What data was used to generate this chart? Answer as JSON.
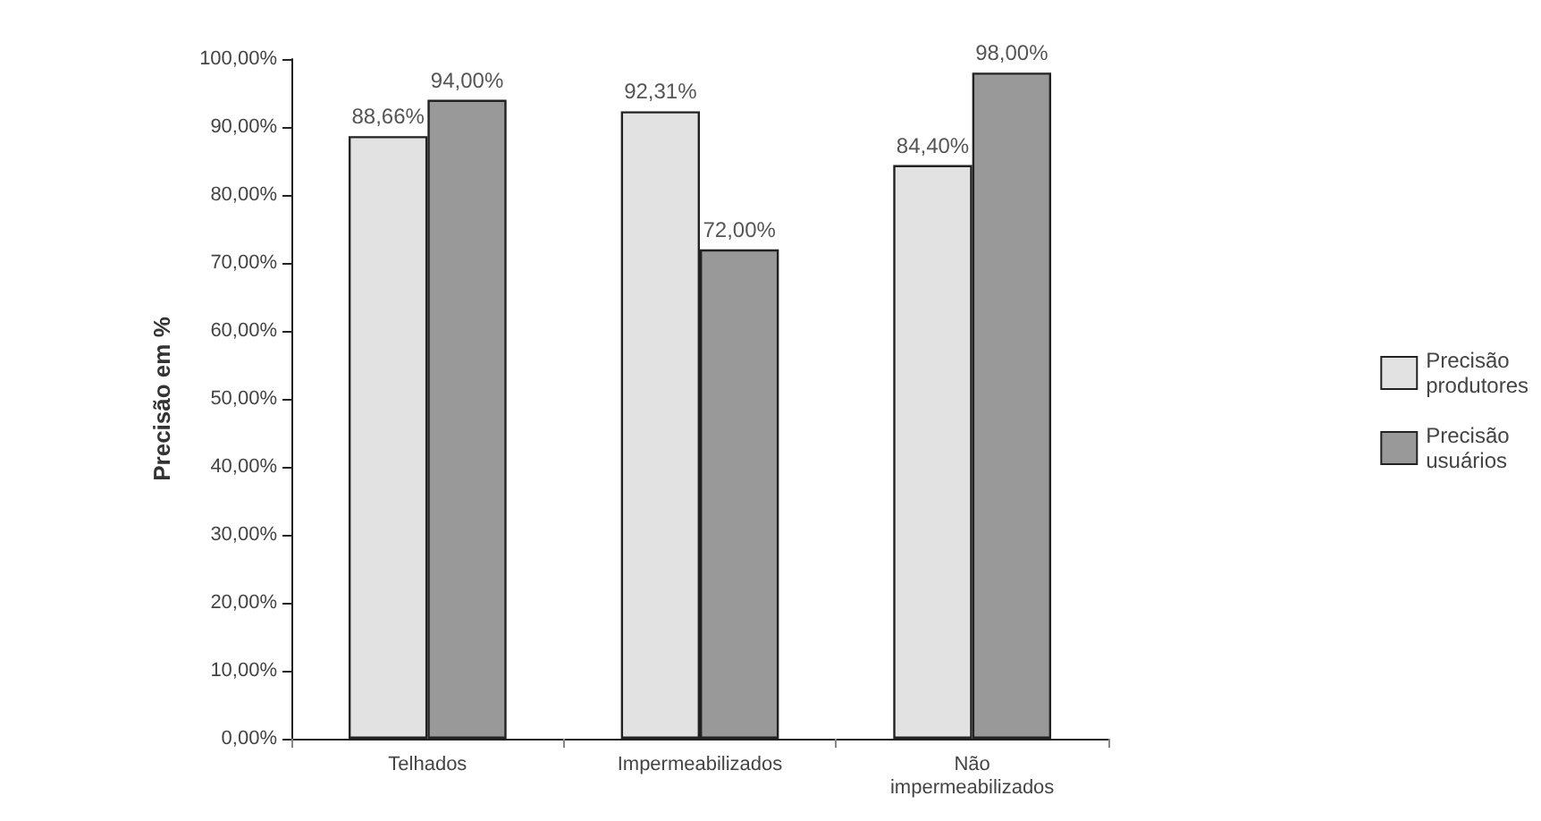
{
  "chart_data": {
    "type": "bar",
    "ylabel": "Precisão em %",
    "categories": [
      "Telhados",
      "Impermeabilizados",
      "Não\nimpermeabilizados"
    ],
    "series": [
      {
        "name": "Precisão\nprodutores",
        "color": "#e2e2e2",
        "values": [
          88.66,
          92.31,
          84.4
        ],
        "value_labels": [
          "88,66%",
          "92,31%",
          "84,40%"
        ]
      },
      {
        "name": "Precisão\nusuários",
        "color": "#999999",
        "values": [
          94.0,
          72.0,
          98.0
        ],
        "value_labels": [
          "94,00%",
          "72,00%",
          "98,00%"
        ]
      }
    ],
    "ylim": [
      0,
      100
    ],
    "yticks": [
      {
        "value": 0,
        "label": "0,00%"
      },
      {
        "value": 10,
        "label": "10,00%"
      },
      {
        "value": 20,
        "label": "20,00%"
      },
      {
        "value": 30,
        "label": "30,00%"
      },
      {
        "value": 40,
        "label": "40,00%"
      },
      {
        "value": 50,
        "label": "50,00%"
      },
      {
        "value": 60,
        "label": "60,00%"
      },
      {
        "value": 70,
        "label": "70,00%"
      },
      {
        "value": 80,
        "label": "80,00%"
      },
      {
        "value": 90,
        "label": "90,00%"
      },
      {
        "value": 100,
        "label": "100,00%"
      }
    ],
    "grid": false,
    "legend": "right"
  }
}
